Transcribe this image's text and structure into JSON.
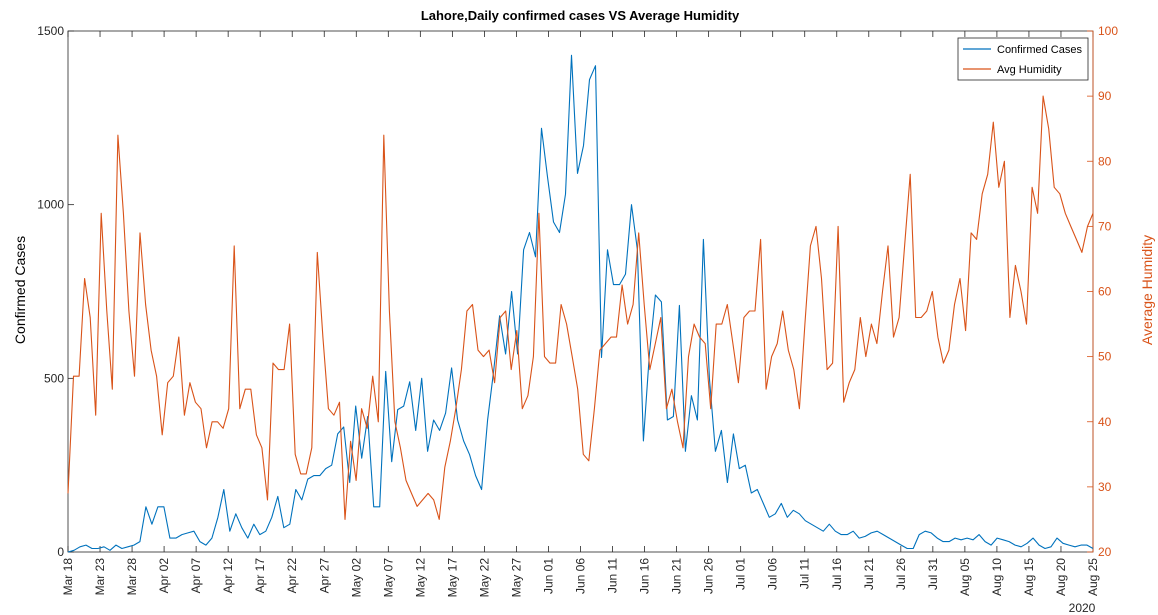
{
  "chart_data": {
    "type": "line",
    "title": "Lahore,Daily confirmed cases VS Average Humidity",
    "xlabel": "",
    "ylabel": "Confirmed Cases",
    "ylabel_right": "Average Humidity",
    "ylim": [
      0,
      1500
    ],
    "ylim_right": [
      20,
      100
    ],
    "yticks": [
      "0",
      "500",
      "1000",
      "1500"
    ],
    "yticks_right": [
      "20",
      "30",
      "40",
      "50",
      "60",
      "70",
      "80",
      "90",
      "100"
    ],
    "xticks": [
      "Mar 18",
      "Mar 23",
      "Mar 28",
      "Apr 02",
      "Apr 07",
      "Apr 12",
      "Apr 17",
      "Apr 22",
      "Apr 27",
      "May 02",
      "May 07",
      "May 12",
      "May 17",
      "May 22",
      "May 27",
      "Jun 01",
      "Jun 06",
      "Jun 11",
      "Jun 16",
      "Jun 21",
      "Jun 26",
      "Jul 01",
      "Jul 06",
      "Jul 11",
      "Jul 16",
      "Jul 21",
      "Jul 26",
      "Jul 31",
      "Aug 05",
      "Aug 10",
      "Aug 15",
      "Aug 20",
      "Aug 25"
    ],
    "year_label": "2020",
    "legend_position": "top-right",
    "start_date": "2020-03-18",
    "series": [
      {
        "name": "Confirmed Cases",
        "axis": "left",
        "color": "#0072BD",
        "values": [
          0,
          5,
          15,
          20,
          10,
          10,
          15,
          5,
          20,
          10,
          15,
          20,
          30,
          130,
          80,
          130,
          130,
          40,
          40,
          50,
          55,
          60,
          30,
          20,
          40,
          100,
          180,
          60,
          110,
          70,
          40,
          80,
          50,
          60,
          100,
          160,
          70,
          80,
          180,
          150,
          210,
          220,
          220,
          240,
          250,
          340,
          360,
          200,
          420,
          270,
          390,
          130,
          130,
          520,
          260,
          410,
          420,
          490,
          350,
          500,
          290,
          380,
          350,
          400,
          530,
          380,
          320,
          280,
          220,
          180,
          380,
          520,
          680,
          570,
          750,
          570,
          870,
          920,
          850,
          1220,
          1080,
          950,
          920,
          1030,
          1430,
          1090,
          1170,
          1360,
          1400,
          560,
          870,
          770,
          770,
          800,
          1000,
          870,
          320,
          570,
          740,
          720,
          380,
          390,
          710,
          290,
          450,
          380,
          900,
          500,
          290,
          350,
          200,
          340,
          240,
          250,
          170,
          180,
          140,
          100,
          110,
          140,
          100,
          120,
          110,
          90,
          80,
          70,
          60,
          80,
          60,
          50,
          50,
          60,
          40,
          45,
          55,
          60,
          50,
          40,
          30,
          20,
          10,
          10,
          50,
          60,
          55,
          40,
          30,
          30,
          40,
          35,
          40,
          35,
          50,
          30,
          20,
          40,
          35,
          30,
          20,
          15,
          25,
          40,
          20,
          10,
          15,
          40,
          25,
          20,
          15,
          20,
          20,
          10
        ]
      },
      {
        "name": "Avg Humidity",
        "axis": "right",
        "color": "#D95319",
        "values": [
          29,
          47,
          47,
          62,
          56,
          41,
          72,
          57,
          45,
          84,
          72,
          57,
          47,
          69,
          58,
          51,
          47,
          38,
          46,
          47,
          53,
          41,
          46,
          43,
          42,
          36,
          40,
          40,
          39,
          42,
          67,
          42,
          45,
          45,
          38,
          36,
          28,
          49,
          48,
          48,
          55,
          35,
          32,
          32,
          36,
          66,
          53,
          42,
          41,
          43,
          25,
          37,
          31,
          42,
          39,
          47,
          40,
          84,
          57,
          40,
          36,
          31,
          29,
          27,
          28,
          29,
          28,
          25,
          33,
          37,
          42,
          48,
          57,
          58,
          51,
          50,
          51,
          46,
          56,
          57,
          48,
          54,
          42,
          44,
          50,
          72,
          50,
          49,
          49,
          58,
          55,
          50,
          45,
          35,
          34,
          42,
          51,
          52,
          53,
          53,
          61,
          55,
          58,
          69,
          58,
          48,
          52,
          56,
          42,
          45,
          40,
          36,
          50,
          55,
          53,
          52,
          42,
          55,
          55,
          58,
          52,
          46,
          56,
          57,
          57,
          68,
          45,
          50,
          52,
          57,
          51,
          48,
          42,
          55,
          67,
          70,
          62,
          48,
          49,
          70,
          43,
          46,
          48,
          56,
          50,
          55,
          52,
          60,
          67,
          53,
          56,
          67,
          78,
          56,
          56,
          57,
          60,
          53,
          49,
          51,
          58,
          62,
          54,
          69,
          68,
          75,
          78,
          86,
          76,
          80,
          56,
          64,
          60,
          55,
          76,
          72,
          90,
          85,
          76,
          75,
          72,
          70,
          68,
          66,
          70,
          72
        ]
      }
    ]
  }
}
